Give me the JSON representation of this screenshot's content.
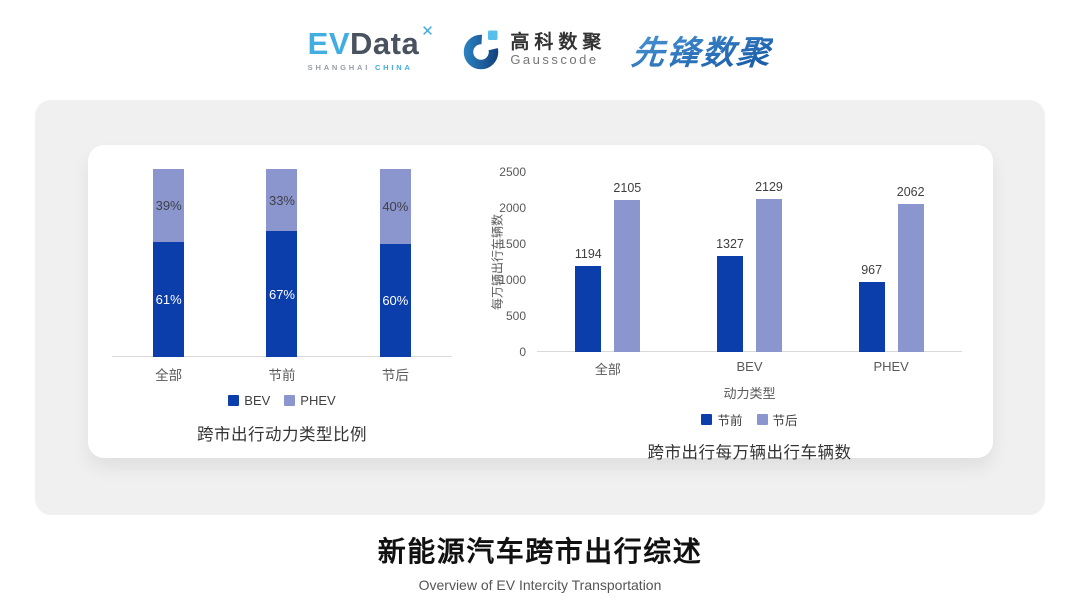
{
  "header": {
    "evdata": {
      "ev": "EV",
      "data": "Data",
      "spark_icon": "✕",
      "sub_left": "SHANGHAI",
      "sub_right": "CHINA"
    },
    "gausscode": {
      "cn": "高科数聚",
      "en": "Gausscode"
    },
    "xianfeng": {
      "text": "先锋数聚"
    }
  },
  "colors": {
    "bev_dark_blue": "#0B3DAB",
    "phev_light_blue": "#8B95CE",
    "card_gray": "#F0F0F0",
    "axis_line": "#D9D9D9",
    "tick_text": "#595959",
    "value_text": "#404040",
    "evdata_blue": "#41ADE0",
    "xianfeng_blue": "#2878C4"
  },
  "chart_data": [
    {
      "type": "bar",
      "subtype": "stacked-100-percent",
      "title": "跨市出行动力类型比例",
      "categories": [
        "全部",
        "节前",
        "节后"
      ],
      "series": [
        {
          "name": "BEV",
          "color": "#0B3DAB",
          "values": [
            61,
            67,
            60
          ]
        },
        {
          "name": "PHEV",
          "color": "#8B95CE",
          "values": [
            39,
            33,
            40
          ]
        }
      ],
      "value_suffix": "%",
      "ylim": [
        0,
        100
      ],
      "grid": false,
      "legend_position": "bottom"
    },
    {
      "type": "bar",
      "subtype": "grouped",
      "title": "跨市出行每万辆出行车辆数",
      "categories": [
        "全部",
        "BEV",
        "PHEV"
      ],
      "series": [
        {
          "name": "节前",
          "color": "#0B3DAB",
          "values": [
            1194,
            1327,
            967
          ]
        },
        {
          "name": "节后",
          "color": "#8B95CE",
          "values": [
            2105,
            2129,
            2062
          ]
        }
      ],
      "xlabel": "动力类型",
      "ylabel": "每万辆出行车辆数",
      "ylim": [
        0,
        2500
      ],
      "yticks": [
        0,
        500,
        1000,
        1500,
        2000,
        2500
      ],
      "grid": false,
      "legend_position": "bottom"
    }
  ],
  "footer": {
    "title": "新能源汽车跨市出行综述",
    "subtitle": "Overview of EV Intercity Transportation"
  }
}
